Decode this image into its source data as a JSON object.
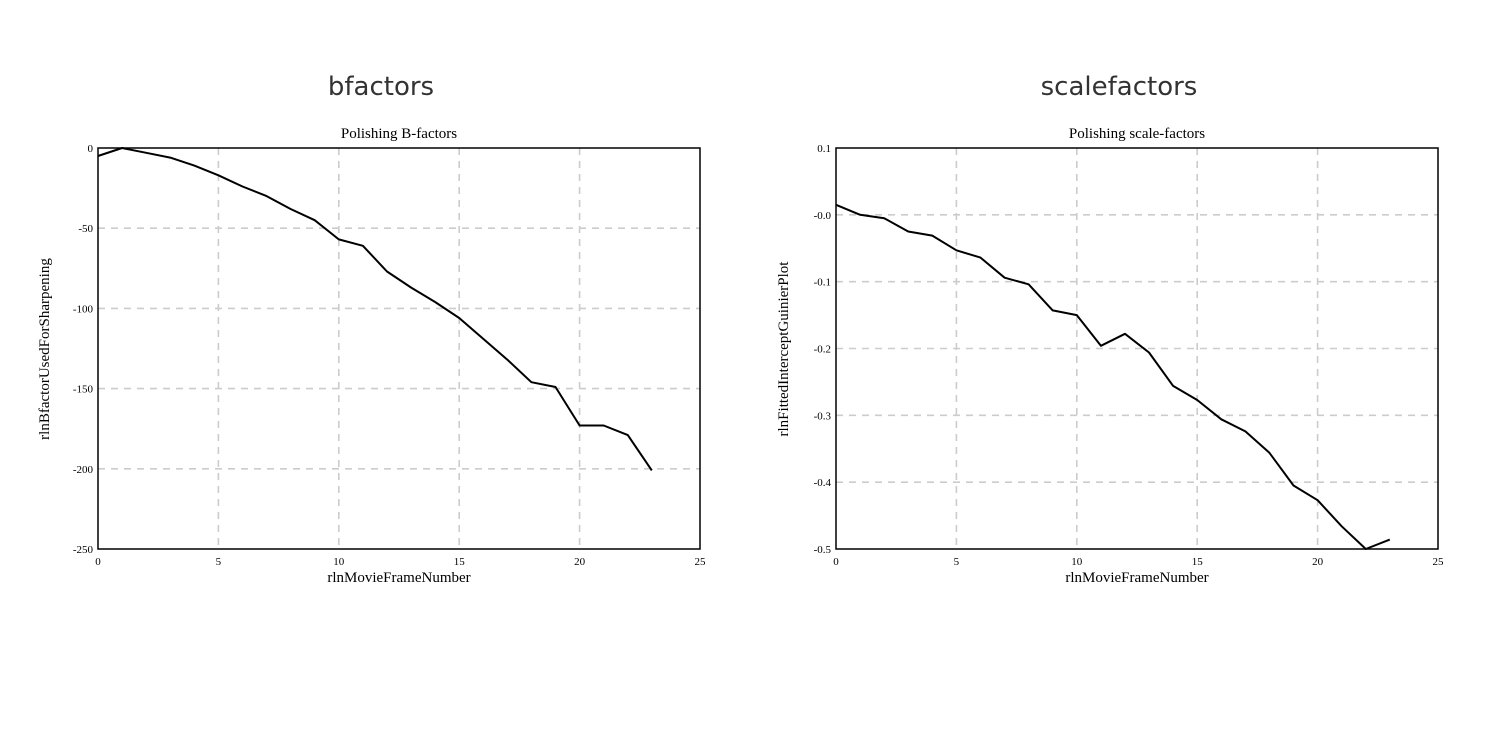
{
  "panels": [
    {
      "title": "bfactors"
    },
    {
      "title": "scalefactors"
    }
  ],
  "chart_data": [
    {
      "type": "line",
      "title": "Polishing B-factors",
      "xlabel": "rlnMovieFrameNumber",
      "ylabel": "rlnBfactorUsedForSharpening",
      "xlim": [
        0,
        25
      ],
      "ylim": [
        -250,
        0
      ],
      "xticks": [
        0,
        5,
        10,
        15,
        20,
        25
      ],
      "yticks": [
        0,
        -50,
        -100,
        -150,
        -200,
        -250
      ],
      "ytick_labels": [
        "0",
        "-50",
        "-100",
        "-150",
        "-200",
        "-250"
      ],
      "grid": true,
      "line_color": "#000000",
      "series": [
        {
          "x": [
            0,
            1,
            2,
            3,
            4,
            5,
            6,
            7,
            8,
            9,
            10,
            11,
            12,
            13,
            14,
            15,
            16,
            17,
            18,
            19,
            20,
            21,
            22,
            23
          ],
          "values": [
            -5,
            0,
            -3,
            -6,
            -11,
            -17,
            -24,
            -30,
            -38,
            -45,
            -57,
            -61,
            -77,
            -87,
            -96,
            -106,
            -119,
            -132,
            -146,
            -149,
            -173,
            -173,
            -179,
            -201
          ]
        }
      ]
    },
    {
      "type": "line",
      "title": "Polishing scale-factors",
      "xlabel": "rlnMovieFrameNumber",
      "ylabel": "rlnFittedInterceptGuinierPlot",
      "xlim": [
        0,
        25
      ],
      "ylim": [
        -0.5,
        0.1
      ],
      "xticks": [
        0,
        5,
        10,
        15,
        20,
        25
      ],
      "yticks": [
        0.1,
        0.0,
        -0.1,
        -0.2,
        -0.3,
        -0.4,
        -0.5
      ],
      "ytick_labels": [
        "0.1",
        "-0.0",
        "-0.1",
        "-0.2",
        "-0.3",
        "-0.4",
        "-0.5"
      ],
      "grid": true,
      "line_color": "#000000",
      "series": [
        {
          "x": [
            0,
            1,
            2,
            3,
            4,
            5,
            6,
            7,
            8,
            9,
            10,
            11,
            12,
            13,
            14,
            15,
            16,
            17,
            18,
            19,
            20,
            21,
            22,
            23
          ],
          "values": [
            0.015,
            0.0,
            -0.005,
            -0.025,
            -0.031,
            -0.053,
            -0.064,
            -0.094,
            -0.104,
            -0.143,
            -0.15,
            -0.196,
            -0.178,
            -0.206,
            -0.256,
            -0.277,
            -0.306,
            -0.324,
            -0.356,
            -0.405,
            -0.427,
            -0.466,
            -0.5,
            -0.486
          ]
        }
      ]
    }
  ]
}
